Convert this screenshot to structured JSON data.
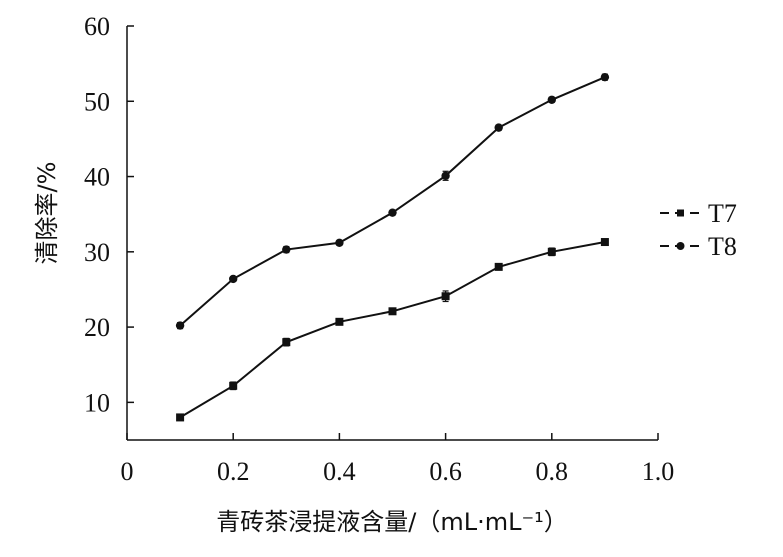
{
  "chart_data": {
    "type": "line",
    "title": "",
    "xlabel": "青砖茶浸提液含量/（mL·mL⁻¹）",
    "ylabel": "清除率/%",
    "xlim": [
      0,
      1.0
    ],
    "ylim": [
      5,
      60
    ],
    "x_ticks": [
      "0",
      "0.2",
      "0.4",
      "0.6",
      "0.8",
      "1.0"
    ],
    "y_ticks": [
      "10",
      "20",
      "30",
      "40",
      "50",
      "60"
    ],
    "x_tick_values": [
      0,
      0.2,
      0.4,
      0.6,
      0.8,
      1.0
    ],
    "y_tick_values": [
      10,
      20,
      30,
      40,
      50,
      60
    ],
    "x": [
      0.1,
      0.2,
      0.3,
      0.4,
      0.5,
      0.6,
      0.7,
      0.8,
      0.9
    ],
    "series": [
      {
        "name": "T7",
        "marker": "square",
        "values": [
          8.0,
          12.2,
          18.0,
          20.7,
          22.1,
          24.1,
          28.0,
          30.0,
          31.3
        ],
        "errors": [
          0.3,
          0.5,
          0.5,
          0.3,
          0.3,
          0.7,
          0.3,
          0.5,
          0.3
        ]
      },
      {
        "name": "T8",
        "marker": "circle",
        "values": [
          20.2,
          26.4,
          30.3,
          31.2,
          35.2,
          40.1,
          46.5,
          50.2,
          53.2
        ],
        "errors": [
          0.4,
          0.3,
          0.4,
          0.3,
          0.3,
          0.6,
          0.3,
          0.3,
          0.4
        ]
      }
    ],
    "grid": false,
    "legend_position": "right"
  },
  "colors": {
    "line": "#111111",
    "background": "#ffffff"
  }
}
